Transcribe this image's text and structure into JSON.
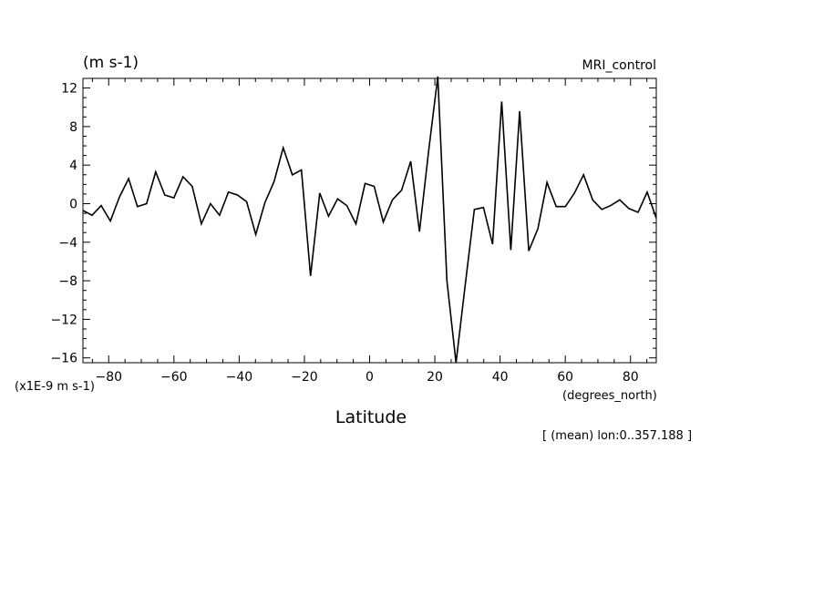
{
  "chart_data": {
    "type": "line",
    "title": "MRI_control",
    "units_label": "(m s-1)",
    "scale_label": "(x1E-9 m s-1)",
    "xlabel": "Latitude",
    "xunits": "(degrees_north)",
    "subtitle": "[ (mean) lon:0..357.188 ]",
    "xlim": [
      -87.9,
      87.9
    ],
    "ylim": [
      -16.5,
      13
    ],
    "xticks": [
      -80,
      -60,
      -40,
      -20,
      0,
      20,
      40,
      60,
      80
    ],
    "yticks": [
      12,
      8,
      4,
      0,
      -4,
      -8,
      -12,
      -16
    ],
    "xtick_labels": [
      "−80",
      "−60",
      "−40",
      "−20",
      "0",
      "20",
      "40",
      "60",
      "80"
    ],
    "ytick_labels": [
      "12",
      "8",
      "4",
      "0",
      "−4",
      "−8",
      "−12",
      "−16"
    ],
    "grid": false,
    "line_color": "#000000",
    "series": [
      {
        "x": [
          -87.9,
          -85.1,
          -82.3,
          -79.5,
          -76.7,
          -73.9,
          -71.2,
          -68.4,
          -65.6,
          -62.8,
          -60.0,
          -57.2,
          -54.4,
          -51.6,
          -48.8,
          -46.0,
          -43.3,
          -40.5,
          -37.7,
          -34.9,
          -32.1,
          -29.3,
          -26.5,
          -23.7,
          -20.9,
          -18.1,
          -15.3,
          -12.6,
          -9.8,
          -7.0,
          -4.2,
          -1.4,
          1.4,
          4.2,
          7.0,
          9.8,
          12.6,
          15.3,
          18.1,
          20.9,
          23.7,
          26.5,
          29.3,
          32.1,
          34.9,
          37.7,
          40.5,
          43.3,
          46.0,
          48.8,
          51.6,
          54.4,
          57.2,
          60.0,
          62.8,
          65.6,
          68.4,
          71.2,
          73.9,
          76.7,
          79.5,
          82.3,
          85.1,
          87.9
        ],
        "values": [
          -0.7,
          -1.2,
          -0.2,
          -1.8,
          0.7,
          2.6,
          -0.3,
          0.0,
          3.3,
          0.9,
          0.6,
          2.8,
          1.8,
          -2.1,
          0.0,
          -1.2,
          1.2,
          0.9,
          0.2,
          -3.2,
          0.1,
          2.3,
          5.8,
          3.0,
          3.5,
          -7.5,
          1.1,
          -1.3,
          0.5,
          -0.2,
          -2.1,
          2.1,
          1.8,
          -1.9,
          0.4,
          1.4,
          4.4,
          -2.9,
          5.5,
          13.2,
          -8.0,
          -16.5,
          -8.5,
          -0.6,
          -0.4,
          -4.2,
          10.6,
          -4.8,
          9.6,
          -4.9,
          -2.6,
          2.2,
          -0.3,
          -0.3,
          1.1,
          3.0,
          0.4,
          -0.6,
          -0.2,
          0.4,
          -0.5,
          -0.9,
          1.2,
          -1.5
        ]
      }
    ]
  }
}
